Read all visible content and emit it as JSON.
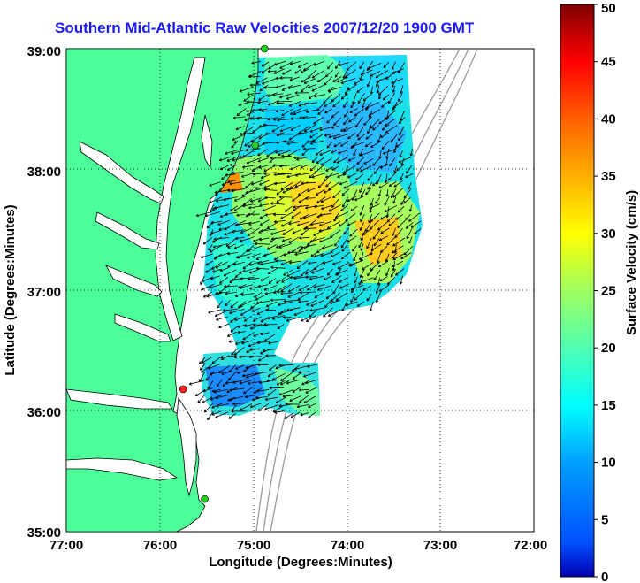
{
  "title": "Southern Mid-Atlantic Raw Velocities 2007/12/20 1900 GMT",
  "axes": {
    "xlabel": "Longitude (Degrees:Minutes)",
    "ylabel": "Latitude (Degrees:Minutes)",
    "x_ticks": [
      "77:00",
      "76:00",
      "75:00",
      "74:00",
      "73:00",
      "72:00"
    ],
    "y_ticks": [
      "39:00",
      "38:00",
      "37:00",
      "36:00",
      "35:00"
    ],
    "xlim": [
      -77,
      -72
    ],
    "ylim": [
      35,
      39
    ],
    "grid": "dotted"
  },
  "colorbar": {
    "label": "Surface Velocity (cm/s)",
    "ticks": [
      "0",
      "5",
      "10",
      "15",
      "20",
      "25",
      "30",
      "35",
      "40",
      "45",
      "50"
    ],
    "range": [
      0,
      50
    ],
    "colormap": "jet"
  },
  "colors": {
    "land": "#4dff99",
    "title": "#1a1aff",
    "station_green": "#22cc22",
    "station_red": "#ff2020"
  },
  "stations": [
    {
      "lon": -74.88,
      "lat": 39.0,
      "color": "green"
    },
    {
      "lon": -74.98,
      "lat": 38.2,
      "color": "green"
    },
    {
      "lon": -75.75,
      "lat": 36.18,
      "color": "red"
    },
    {
      "lon": -75.52,
      "lat": 35.27,
      "color": "green"
    }
  ]
}
